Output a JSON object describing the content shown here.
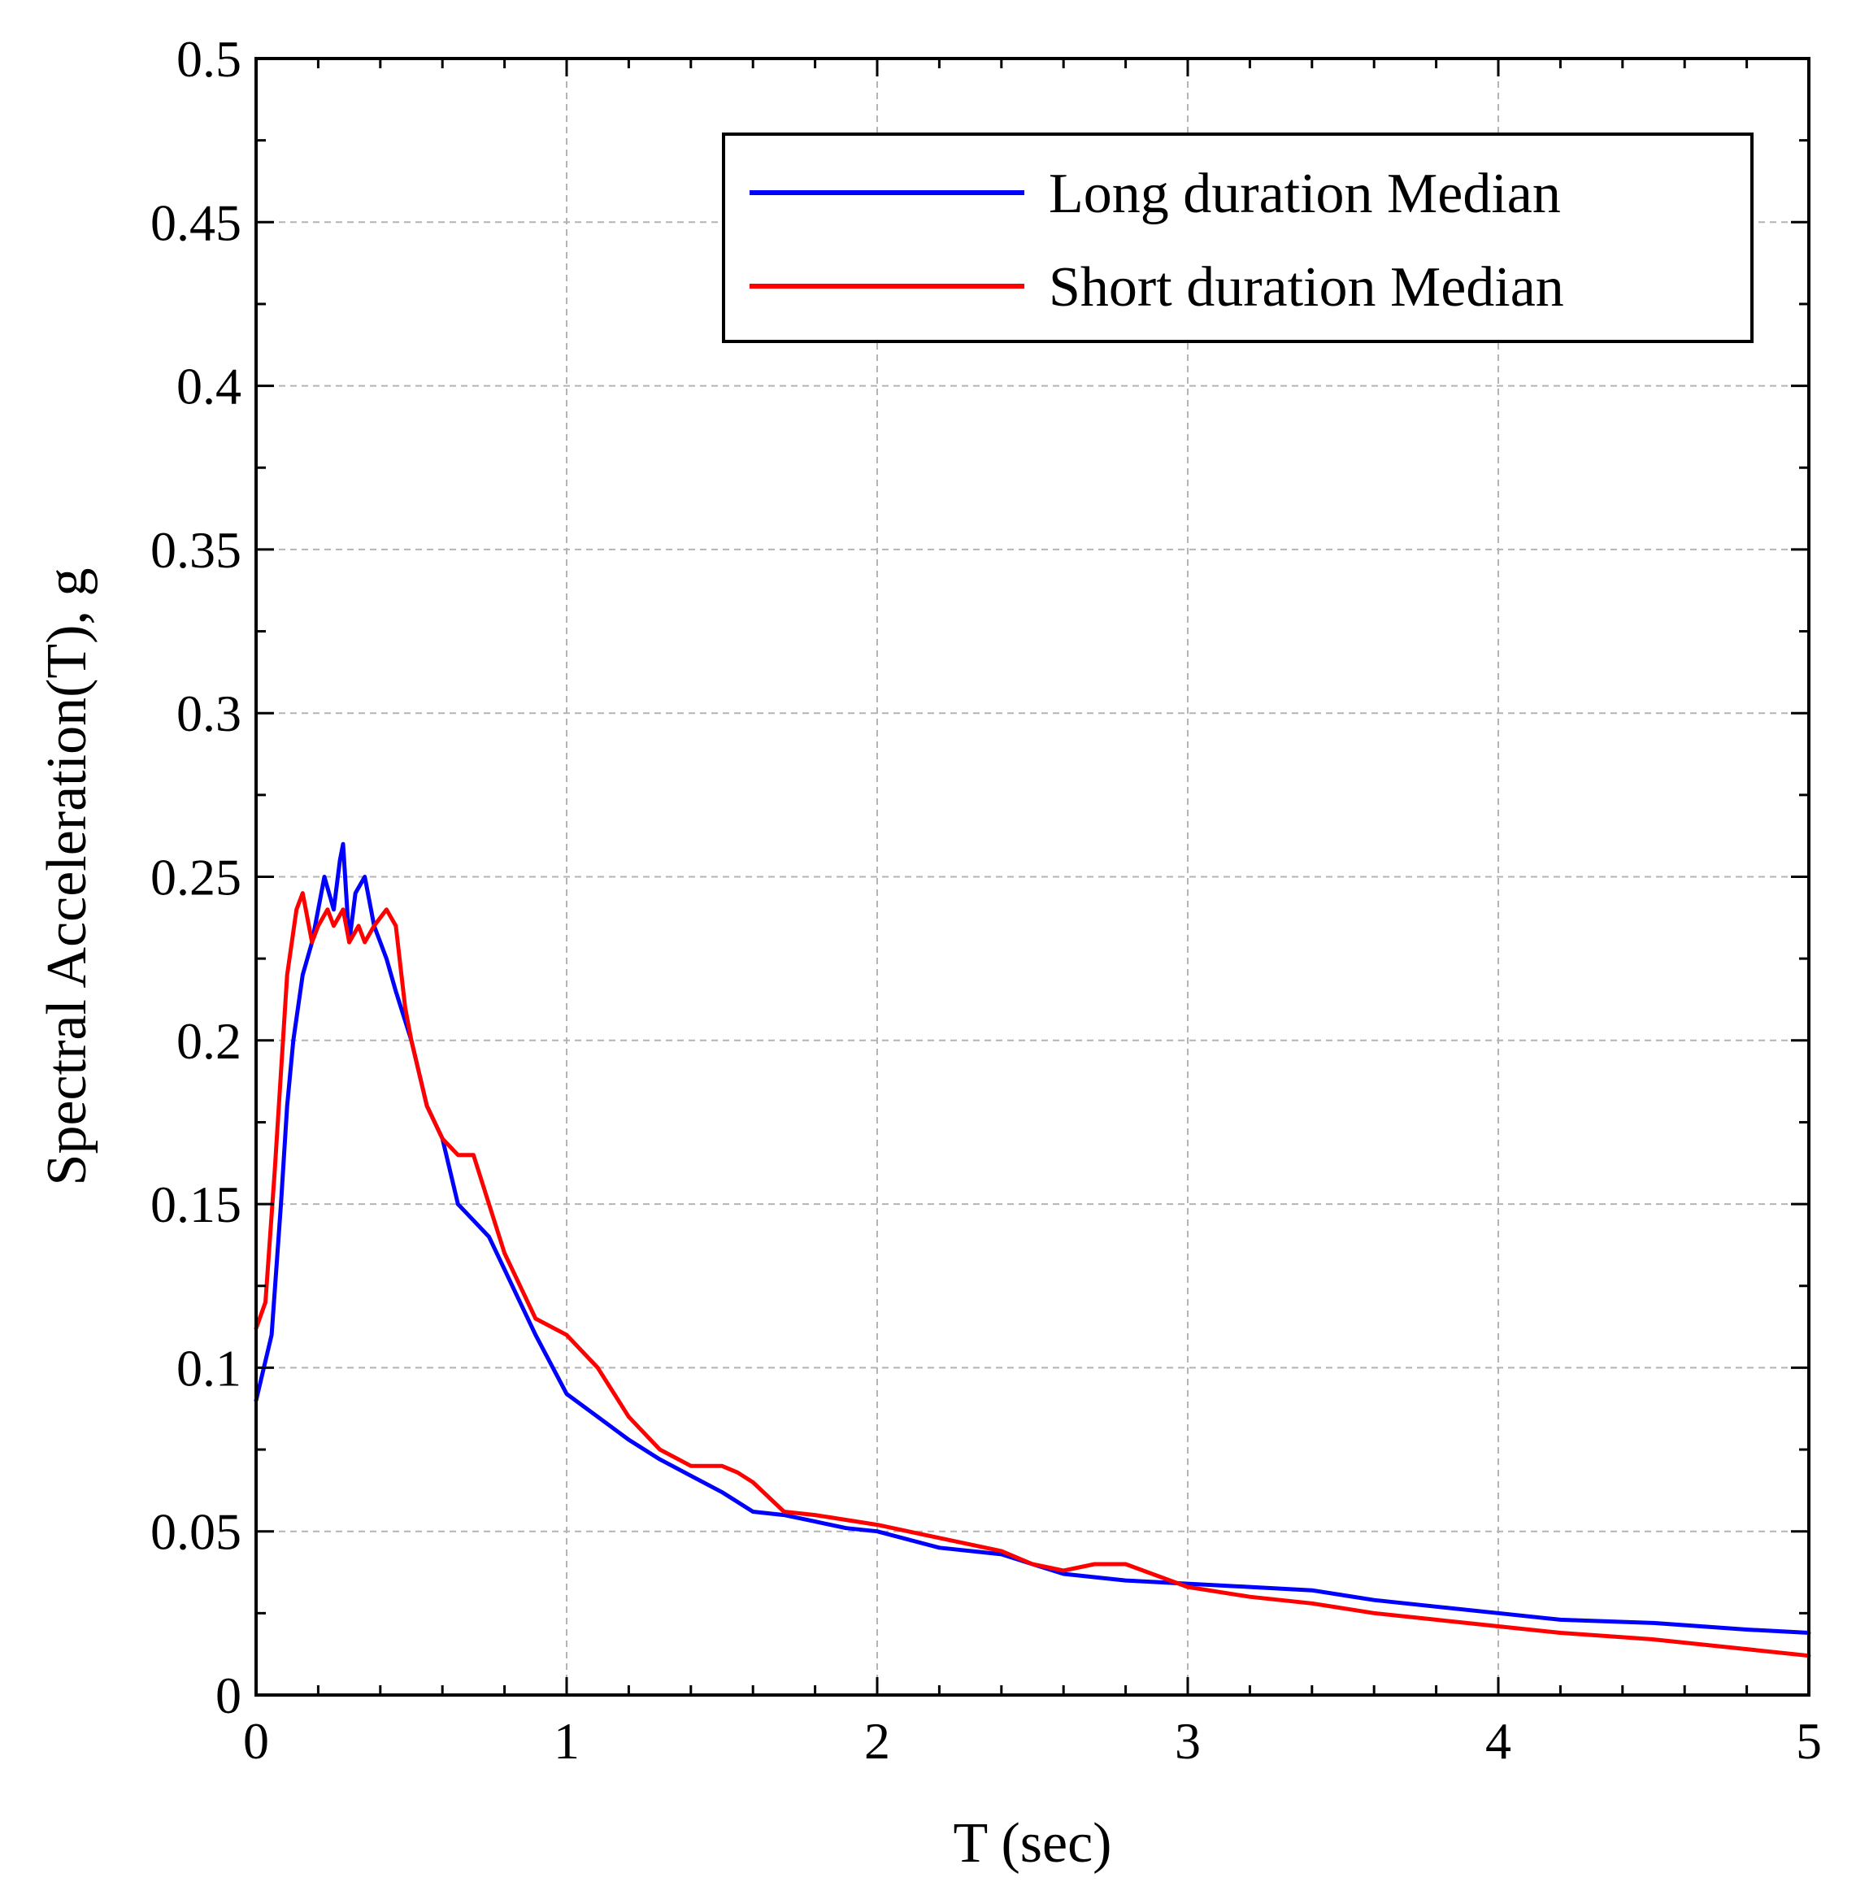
{
  "chart_data": {
    "type": "line",
    "title": "",
    "xlabel": "T (sec)",
    "ylabel": "Spectral Acceleration(T), g",
    "xlim": [
      0,
      5
    ],
    "ylim": [
      0,
      0.5
    ],
    "grid": true,
    "legend_position": "top-right",
    "x_ticks": [
      "0",
      "1",
      "2",
      "3",
      "4",
      "5"
    ],
    "y_ticks": [
      "0",
      "0.05",
      "0.1",
      "0.15",
      "0.2",
      "0.25",
      "0.3",
      "0.35",
      "0.4",
      "0.45",
      "0.5"
    ],
    "series": [
      {
        "name": "Long duration Median",
        "color": "#0000ff",
        "x": [
          0,
          0.05,
          0.08,
          0.1,
          0.12,
          0.15,
          0.18,
          0.2,
          0.22,
          0.25,
          0.27,
          0.28,
          0.3,
          0.32,
          0.35,
          0.38,
          0.4,
          0.42,
          0.45,
          0.5,
          0.55,
          0.6,
          0.65,
          0.7,
          0.75,
          0.8,
          0.9,
          1.0,
          1.1,
          1.2,
          1.3,
          1.4,
          1.5,
          1.6,
          1.7,
          1.8,
          1.9,
          2.0,
          2.2,
          2.4,
          2.5,
          2.6,
          2.8,
          3.0,
          3.2,
          3.4,
          3.6,
          3.8,
          4.0,
          4.2,
          4.5,
          4.8,
          5.0
        ],
        "y": [
          0.09,
          0.11,
          0.15,
          0.18,
          0.2,
          0.22,
          0.23,
          0.24,
          0.25,
          0.24,
          0.255,
          0.26,
          0.23,
          0.245,
          0.25,
          0.235,
          0.23,
          0.225,
          0.215,
          0.2,
          0.18,
          0.17,
          0.15,
          0.145,
          0.14,
          0.13,
          0.11,
          0.092,
          0.085,
          0.078,
          0.072,
          0.067,
          0.062,
          0.056,
          0.055,
          0.053,
          0.051,
          0.05,
          0.045,
          0.043,
          0.04,
          0.037,
          0.035,
          0.034,
          0.033,
          0.032,
          0.029,
          0.027,
          0.025,
          0.023,
          0.022,
          0.02,
          0.019
        ]
      },
      {
        "name": "Short duration Median",
        "color": "#ff0000",
        "x": [
          0,
          0.03,
          0.06,
          0.1,
          0.13,
          0.15,
          0.18,
          0.2,
          0.23,
          0.25,
          0.28,
          0.3,
          0.33,
          0.35,
          0.38,
          0.42,
          0.45,
          0.48,
          0.5,
          0.55,
          0.6,
          0.65,
          0.7,
          0.75,
          0.8,
          0.9,
          1.0,
          1.1,
          1.2,
          1.3,
          1.4,
          1.5,
          1.55,
          1.6,
          1.7,
          1.8,
          2.0,
          2.2,
          2.4,
          2.5,
          2.6,
          2.7,
          2.8,
          3.0,
          3.2,
          3.4,
          3.6,
          3.8,
          4.0,
          4.2,
          4.5,
          4.8,
          5.0
        ],
        "y": [
          0.112,
          0.12,
          0.16,
          0.22,
          0.24,
          0.245,
          0.23,
          0.235,
          0.24,
          0.235,
          0.24,
          0.23,
          0.235,
          0.23,
          0.235,
          0.24,
          0.235,
          0.21,
          0.2,
          0.18,
          0.17,
          0.165,
          0.165,
          0.15,
          0.135,
          0.115,
          0.11,
          0.1,
          0.085,
          0.075,
          0.07,
          0.07,
          0.068,
          0.065,
          0.056,
          0.055,
          0.052,
          0.048,
          0.044,
          0.04,
          0.038,
          0.04,
          0.04,
          0.033,
          0.03,
          0.028,
          0.025,
          0.023,
          0.021,
          0.019,
          0.017,
          0.014,
          0.012
        ]
      }
    ]
  }
}
